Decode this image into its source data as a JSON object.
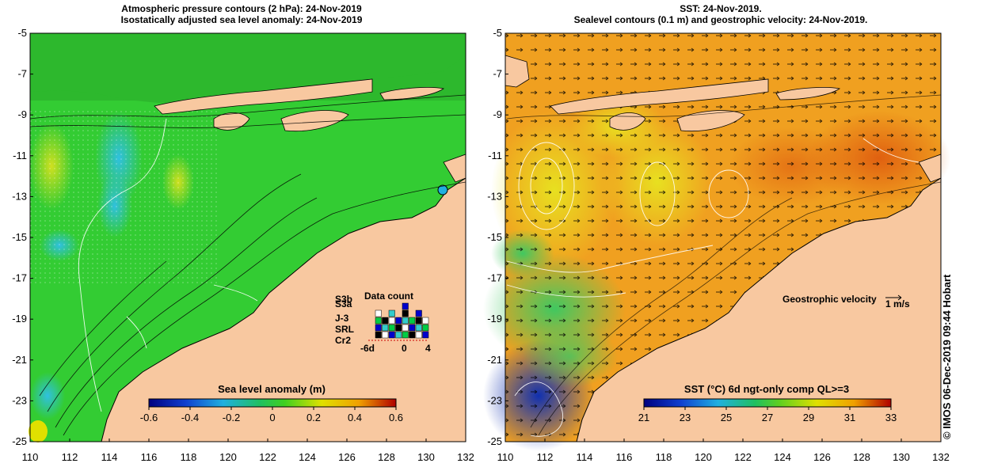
{
  "left_panel": {
    "title_line1": "Atmospheric pressure contours (2 hPa): 24-Nov-2019",
    "title_line2": "Isostatically adjusted sea level anomaly: 24-Nov-2019",
    "colorbar": {
      "label": "Sea level anomaly (m)",
      "ticks": [
        "-0.6",
        "-0.4",
        "-0.2",
        "0",
        "0.2",
        "0.4",
        "0.6"
      ]
    },
    "data_count": {
      "title": "Data count",
      "satellites": [
        "S3b",
        "S3a",
        "J-3",
        "SRL",
        "Cr2"
      ],
      "sat_colors": [
        "#0000cc",
        "#3333ff",
        "#000000",
        "#33cccc",
        "#00cc44"
      ],
      "xticks": [
        "-6d",
        "0",
        "4"
      ]
    }
  },
  "right_panel": {
    "title_line1": "SST: 24-Nov-2019.",
    "title_line2": "Sealevel contours (0.1 m) and geostrophic velocity: 24-Nov-2019.",
    "velocity_label": "Geostrophic velocity",
    "velocity_scale": "1 m/s",
    "colorbar": {
      "label": "SST (°C) 6d ngt-only comp QL>=3",
      "ticks": [
        "21",
        "23",
        "25",
        "27",
        "29",
        "31",
        "33"
      ]
    }
  },
  "axes": {
    "lat_ticks": [
      "-5",
      "-7",
      "-9",
      "-11",
      "-13",
      "-15",
      "-17",
      "-19",
      "-21",
      "-23",
      "-25"
    ],
    "lon_ticks": [
      "110",
      "112",
      "114",
      "116",
      "118",
      "120",
      "122",
      "124",
      "126",
      "128",
      "130",
      "132"
    ]
  },
  "credit": "© IMOS 06-Dec-2019 09:44 Hobart",
  "colors": {
    "land": "#f8c8a0",
    "sla_background": "#33cc33",
    "sst_background": "#f0a020"
  }
}
